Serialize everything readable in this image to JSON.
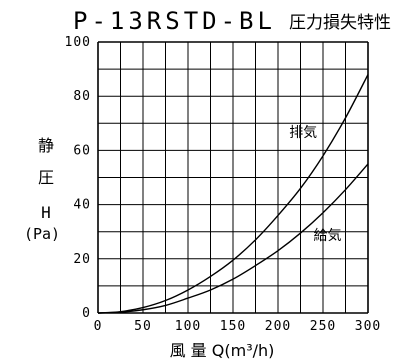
{
  "chart_data": {
    "type": "line",
    "title": "P-13RSTD-BL",
    "subtitle": "圧力損失特性",
    "xlabel": "風 量 Q(m³/h)",
    "ylabel": {
      "line1": "静",
      "line2": "圧",
      "line3": "H",
      "line4": "(Pa)"
    },
    "xlim": [
      0,
      300
    ],
    "ylim": [
      0,
      100
    ],
    "x_ticks": [
      "0",
      "50",
      "100",
      "150",
      "200",
      "250",
      "300"
    ],
    "y_ticks": [
      "0",
      "20",
      "40",
      "60",
      "80",
      "100"
    ],
    "grid": true,
    "grid_x_step": 25,
    "grid_y_step": 10,
    "series": [
      {
        "name": "排気",
        "x": [
          0,
          25,
          50,
          75,
          100,
          125,
          150,
          175,
          200,
          225,
          250,
          275,
          300
        ],
        "y": [
          0,
          0.5,
          2,
          4.6,
          8.5,
          13.5,
          19.5,
          27,
          36,
          46,
          58,
          72,
          88
        ]
      },
      {
        "name": "給気",
        "x": [
          0,
          25,
          50,
          75,
          100,
          125,
          150,
          175,
          200,
          225,
          250,
          275,
          300
        ],
        "y": [
          0,
          0.3,
          1.2,
          2.8,
          5.5,
          8.5,
          12.5,
          17.5,
          23,
          29.5,
          37,
          45.5,
          55
        ]
      }
    ]
  }
}
